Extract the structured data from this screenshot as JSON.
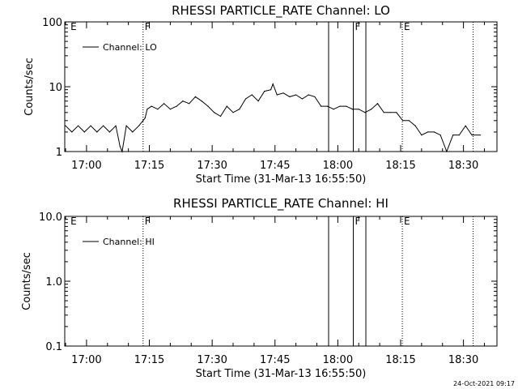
{
  "chart_data": [
    {
      "type": "line",
      "title": "RHESSI PARTICLE_RATE Channel: LO",
      "xlabel": "Start Time (31-Mar-13 16:55:50)",
      "ylabel": "Counts/sec",
      "yscale": "log",
      "ylim": [
        1,
        100
      ],
      "yticks": [
        "1",
        "10",
        "100"
      ],
      "xticks": [
        "17:00",
        "17:15",
        "17:30",
        "17:45",
        "18:00",
        "18:15",
        "18:30"
      ],
      "legend": "top-left",
      "series": [
        {
          "name": "Channel: LO",
          "x_minutes_after_1700": [
            -5,
            -3.5,
            -2,
            -0.5,
            1,
            2.5,
            4,
            5.5,
            7,
            8,
            8.5,
            9.5,
            11,
            12.5,
            13.5,
            14,
            14.5,
            15.5,
            17,
            18.5,
            20,
            21.5,
            23,
            24.5,
            26,
            27.5,
            29,
            30.5,
            32,
            33.5,
            35,
            36.5,
            38,
            39.5,
            41,
            42.5,
            44,
            44.5,
            45.5,
            47,
            48.5,
            50,
            51.5,
            53,
            54.5,
            56,
            57.5,
            59,
            60.5,
            62,
            63.5,
            65,
            66.5,
            68,
            69.5,
            71,
            72.5,
            74,
            75.5,
            77,
            78.5,
            80,
            81.5,
            83,
            84.5,
            86,
            87.5,
            89,
            90.5,
            92,
            94
          ],
          "y": [
            2.5,
            2.0,
            2.5,
            2.0,
            2.5,
            2.0,
            2.5,
            2.0,
            2.5,
            1.2,
            1.0,
            2.5,
            2.0,
            2.5,
            3.0,
            3.3,
            4.5,
            5.0,
            4.5,
            5.5,
            4.5,
            5.0,
            6.0,
            5.5,
            7.0,
            6.0,
            5.0,
            4.0,
            3.5,
            5.0,
            4.0,
            4.5,
            6.5,
            7.5,
            6.0,
            8.5,
            9.0,
            11.0,
            7.5,
            8.0,
            7.0,
            7.5,
            6.5,
            7.5,
            7.0,
            5.0,
            5.0,
            4.5,
            5.0,
            5.0,
            4.5,
            4.5,
            4.0,
            4.5,
            5.5,
            4.0,
            4.0,
            4.0,
            3.0,
            3.0,
            2.5,
            1.8,
            2.0,
            2.0,
            1.8,
            1.0,
            1.8,
            1.8,
            2.5,
            1.8,
            1.8
          ]
        }
      ]
    },
    {
      "type": "line",
      "title": "RHESSI PARTICLE_RATE Channel: HI",
      "xlabel": "Start Time (31-Mar-13 16:55:50)",
      "ylabel": "Counts/sec",
      "yscale": "log",
      "ylim": [
        0.1,
        10
      ],
      "yticks": [
        "0.1",
        "1.0",
        "10.0"
      ],
      "xticks": [
        "17:00",
        "17:15",
        "17:30",
        "17:45",
        "18:00",
        "18:15",
        "18:30"
      ],
      "legend": "top-left",
      "series": [
        {
          "name": "Channel: HI",
          "x_minutes_after_1700": [],
          "y": []
        }
      ]
    }
  ],
  "flag_times": [
    {
      "letter": "E",
      "minutes_after_1700": -4.2
    },
    {
      "letter": "F",
      "minutes_after_1700": 13.5
    },
    {
      "letter": "F",
      "minutes_after_1700": 63.7
    },
    {
      "letter": "E",
      "minutes_after_1700": 75.4
    }
  ],
  "dotted_times": [
    13.5,
    75.4,
    92.3
  ],
  "solid_times": [
    57.8,
    63.7,
    66.7
  ],
  "timestamp": "24-Oct-2021 09:17"
}
